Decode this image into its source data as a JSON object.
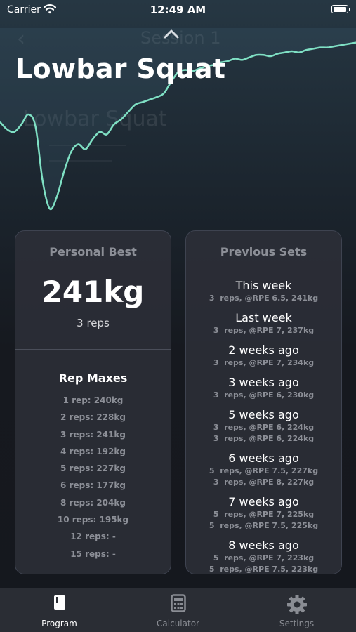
{
  "status_bar": {
    "carrier": "Carrier",
    "time": "12:49 AM",
    "battery_level": 1.0
  },
  "background": {
    "nav_title": "Session 1",
    "exercise_title": "Lowbar Squat"
  },
  "header": {
    "title": "Lowbar Squat",
    "collapse_icon": "chevron-up-icon"
  },
  "chart_data": {
    "type": "line",
    "title": "",
    "xlabel": "",
    "ylabel": "",
    "color": "#7fe0c4",
    "x": [
      0,
      2,
      4,
      6,
      8,
      10,
      12,
      14,
      16,
      18,
      20,
      22,
      24,
      26,
      28,
      30,
      32,
      34,
      36,
      38,
      40,
      42,
      44,
      46,
      48,
      50,
      52,
      54,
      56,
      58,
      60,
      62,
      64,
      66,
      68,
      70,
      72,
      74,
      76,
      78,
      80,
      82,
      84,
      86,
      88,
      90,
      92,
      94,
      96,
      98,
      100
    ],
    "values": [
      180,
      174,
      172,
      178,
      186,
      176,
      132,
      110,
      120,
      140,
      156,
      162,
      158,
      166,
      172,
      170,
      178,
      182,
      188,
      194,
      196,
      198,
      200,
      203,
      212,
      220,
      222,
      221,
      223,
      225,
      226,
      228,
      229,
      231,
      230,
      232,
      234,
      234,
      233,
      235,
      236,
      237,
      236,
      238,
      239,
      240,
      240,
      241,
      242,
      243,
      244
    ],
    "ylim": [
      100,
      250
    ],
    "grid": false,
    "legend": "none"
  },
  "personal_best": {
    "title": "Personal Best",
    "weight": "241kg",
    "reps": "3 reps"
  },
  "rep_maxes": {
    "title": "Rep Maxes",
    "items": [
      "1 rep: 240kg",
      "2 reps: 228kg",
      "3 reps: 241kg",
      "4 reps: 192kg",
      "5 reps: 227kg",
      "6 reps: 177kg",
      "8 reps: 204kg",
      "10 reps: 195kg",
      "12 reps: -",
      "15 reps: -"
    ]
  },
  "previous_sets": {
    "title": "Previous Sets",
    "weeks": [
      {
        "label": "This week",
        "sets": [
          "3  reps, @RPE 6.5, 241kg"
        ]
      },
      {
        "label": "Last week",
        "sets": [
          "3  reps, @RPE 7, 237kg"
        ]
      },
      {
        "label": "2 weeks ago",
        "sets": [
          "3  reps, @RPE 7, 234kg"
        ]
      },
      {
        "label": "3 weeks ago",
        "sets": [
          "3  reps, @RPE 6, 230kg"
        ]
      },
      {
        "label": "5 weeks ago",
        "sets": [
          "3  reps, @RPE 6, 224kg",
          "3  reps, @RPE 6, 224kg"
        ]
      },
      {
        "label": "6 weeks ago",
        "sets": [
          "5  reps, @RPE 7.5, 227kg",
          "3  reps, @RPE 8, 227kg"
        ]
      },
      {
        "label": "7 weeks ago",
        "sets": [
          "5  reps, @RPE 7, 225kg",
          "5  reps, @RPE 7.5, 225kg"
        ]
      },
      {
        "label": "8 weeks ago",
        "sets": [
          "5  reps, @RPE 7, 223kg",
          "5  reps, @RPE 7.5, 223kg"
        ]
      }
    ]
  },
  "tab_bar": {
    "active_color": "#ffffff",
    "inactive_color": "#8a8d94",
    "tabs": [
      {
        "label": "Program",
        "icon": "book-icon",
        "active": true
      },
      {
        "label": "Calculator",
        "icon": "calculator-icon",
        "active": false
      },
      {
        "label": "Settings",
        "icon": "gear-icon",
        "active": false
      }
    ]
  }
}
